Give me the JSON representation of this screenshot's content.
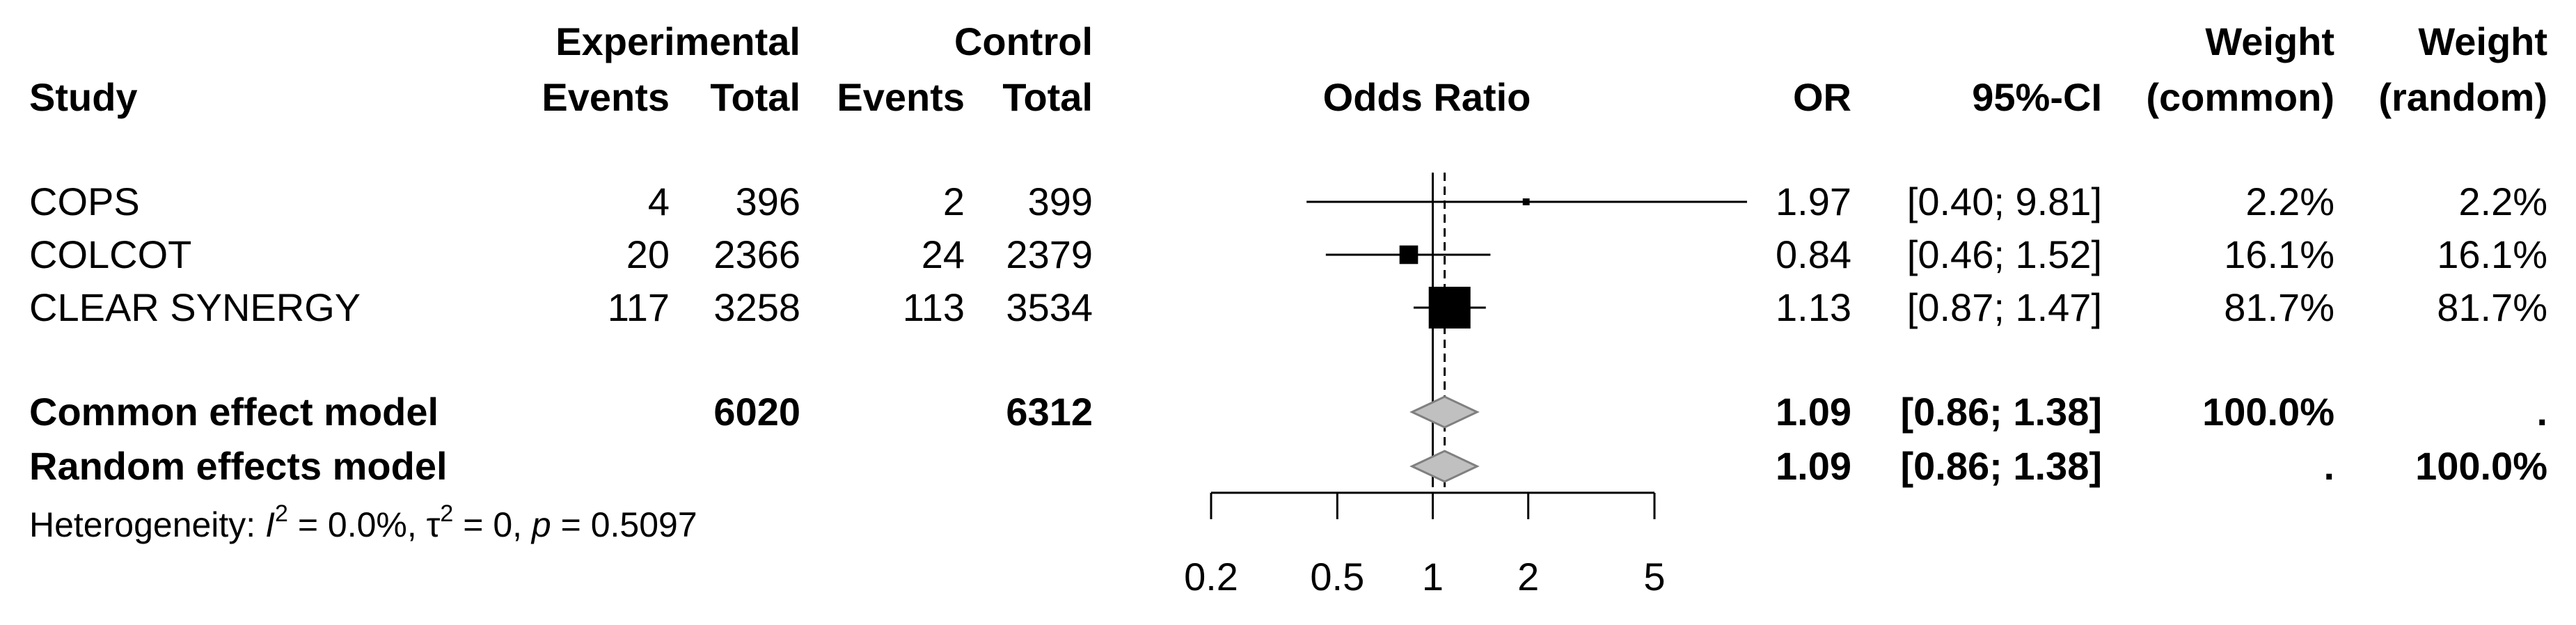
{
  "chart_data": {
    "type": "forest",
    "headers": {
      "study": "Study",
      "experimental": "Experimental",
      "control": "Control",
      "events": "Events",
      "total": "Total",
      "odds_ratio": "Odds Ratio",
      "or": "OR",
      "ci": "95%-CI",
      "weight": "Weight",
      "common": "(common)",
      "random": "(random)"
    },
    "studies": [
      {
        "name": "COPS",
        "exp_events": "4",
        "exp_total": "396",
        "ctrl_events": "2",
        "ctrl_total": "399",
        "or_text": "1.97",
        "ci_text": "[0.40; 9.81]",
        "w_common": "2.2%",
        "w_random": "2.2%",
        "or": 1.97,
        "lower": 0.4,
        "upper": 9.81,
        "weight": 2.2
      },
      {
        "name": "COLCOT",
        "exp_events": "20",
        "exp_total": "2366",
        "ctrl_events": "24",
        "ctrl_total": "2379",
        "or_text": "0.84",
        "ci_text": "[0.46; 1.52]",
        "w_common": "16.1%",
        "w_random": "16.1%",
        "or": 0.84,
        "lower": 0.46,
        "upper": 1.52,
        "weight": 16.1
      },
      {
        "name": "CLEAR SYNERGY",
        "exp_events": "117",
        "exp_total": "3258",
        "ctrl_events": "113",
        "ctrl_total": "3534",
        "or_text": "1.13",
        "ci_text": "[0.87; 1.47]",
        "w_common": "81.7%",
        "w_random": "81.7%",
        "or": 1.13,
        "lower": 0.87,
        "upper": 1.47,
        "weight": 81.7
      }
    ],
    "pooled": [
      {
        "name": "Common effect model",
        "exp_total": "6020",
        "ctrl_total": "6312",
        "or_text": "1.09",
        "ci_text": "[0.86; 1.38]",
        "w_common": "100.0%",
        "w_random": ".",
        "or": 1.09,
        "lower": 0.86,
        "upper": 1.38
      },
      {
        "name": "Random effects model",
        "exp_total": "",
        "ctrl_total": "",
        "or_text": "1.09",
        "ci_text": "[0.86; 1.38]",
        "w_common": ".",
        "w_random": "100.0%",
        "or": 1.09,
        "lower": 0.86,
        "upper": 1.38
      }
    ],
    "heterogeneity": {
      "prefix": "Heterogeneity: ",
      "i2_symbol": "I",
      "i2_sup": "2",
      "i2_value": " = 0.0%, ",
      "tau_symbol": "τ",
      "tau_sup": "2",
      "tau_value": " = 0, ",
      "p_symbol": "p",
      "p_value": " = 0.5097"
    },
    "x_axis": {
      "scale": "log",
      "xlim": [
        0.2,
        5
      ],
      "ticks": [
        0.2,
        0.5,
        1,
        2,
        5
      ],
      "tick_labels": [
        "0.2",
        "0.5",
        "1",
        "2",
        "5"
      ]
    },
    "reference_line": 1,
    "pooled_line": 1.09,
    "colors": {
      "marker": "#000000",
      "diamond_fill": "#c0c0c0",
      "diamond_stroke": "#808080"
    }
  }
}
